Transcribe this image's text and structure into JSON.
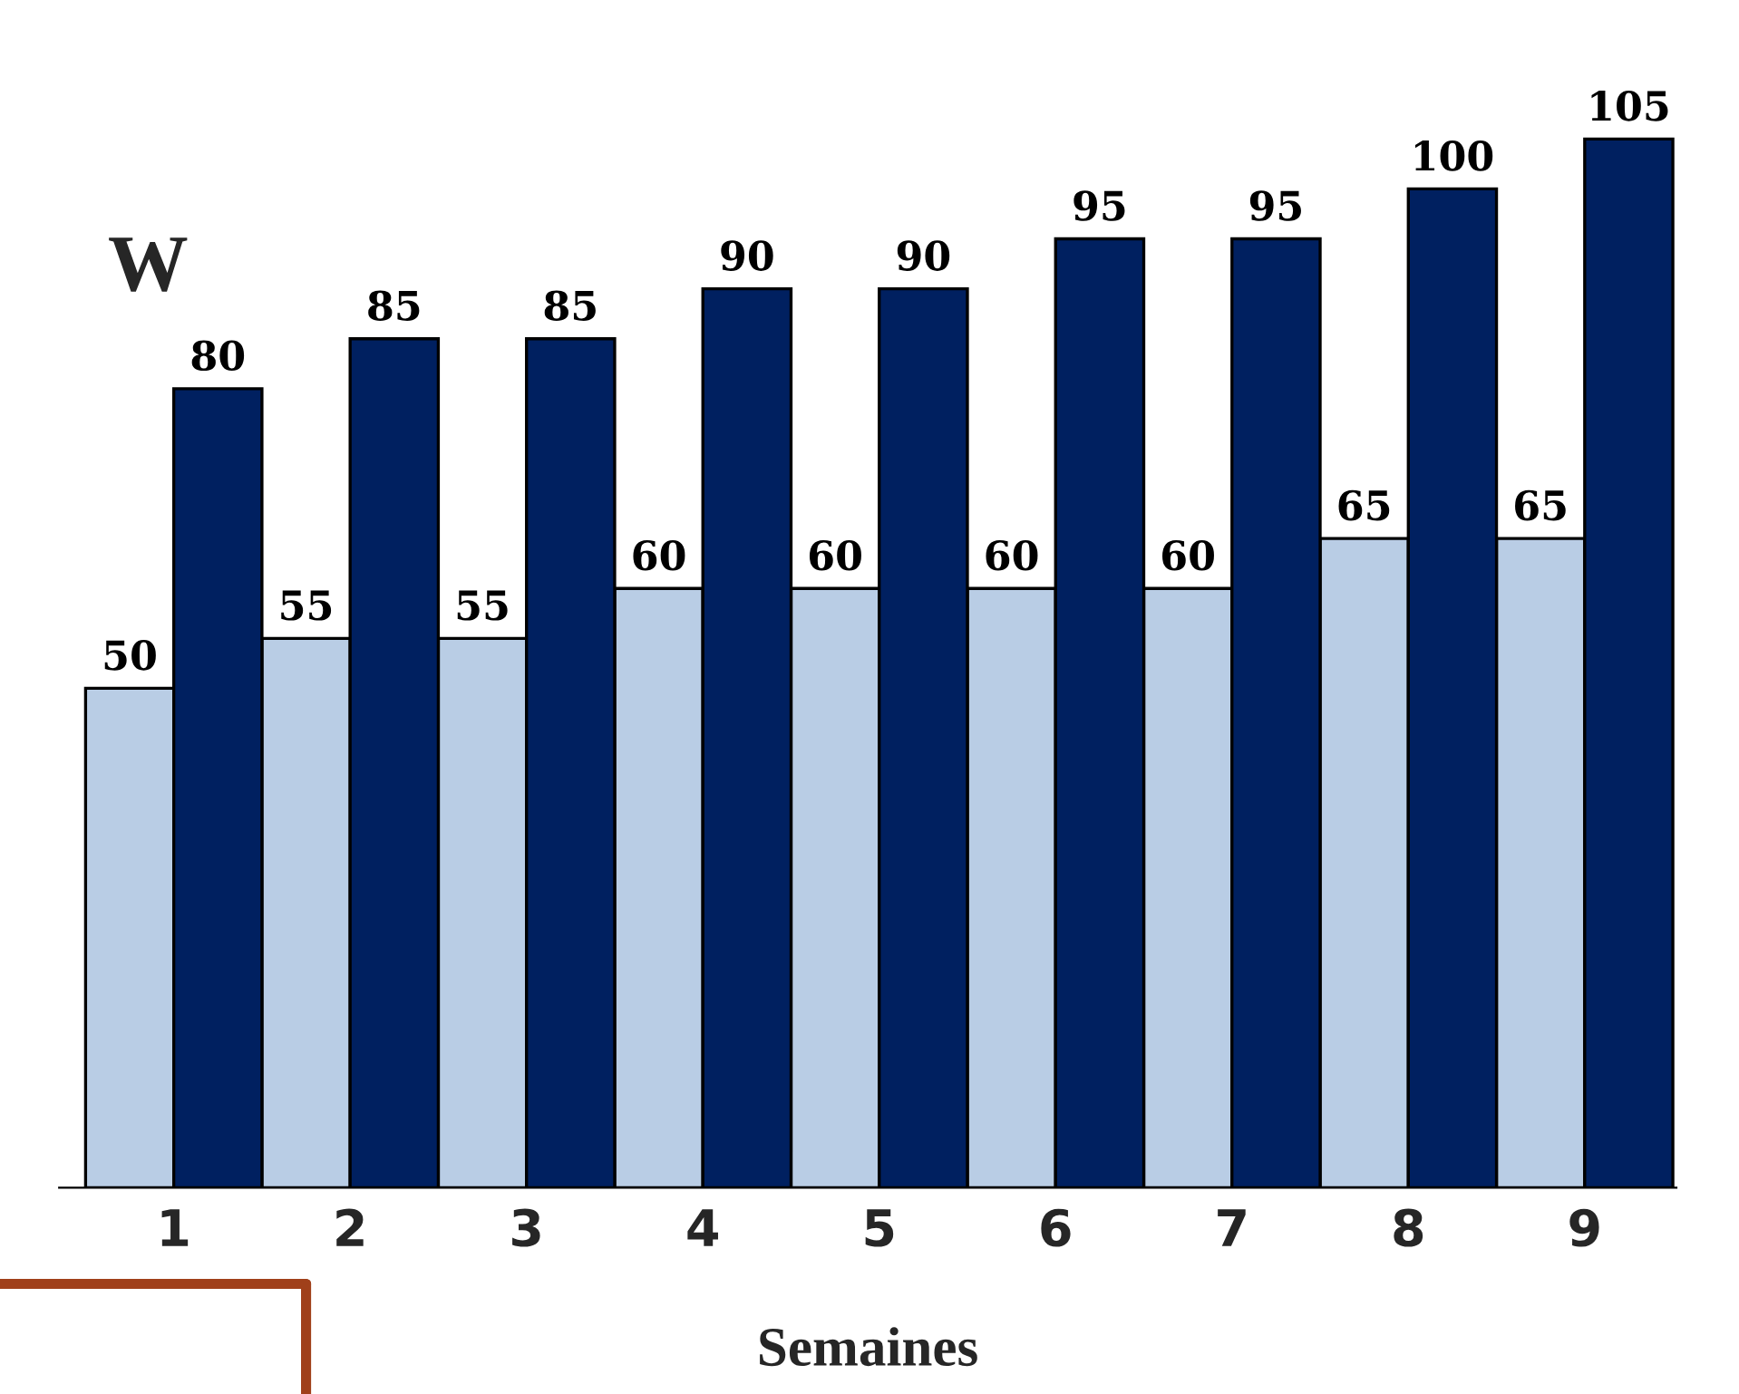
{
  "chart_data": {
    "type": "bar",
    "xlabel": "Semaines",
    "ylabel": "W",
    "categories": [
      "1",
      "2",
      "3",
      "4",
      "5",
      "6",
      "7",
      "8",
      "9"
    ],
    "series": [
      {
        "color": "#b9cde5",
        "values": [
          50,
          55,
          55,
          60,
          60,
          60,
          60,
          65,
          65
        ]
      },
      {
        "color": "#002060",
        "values": [
          80,
          85,
          85,
          90,
          90,
          95,
          95,
          100,
          105
        ]
      }
    ],
    "data_labels": true,
    "tick_labels": "x",
    "grid": false,
    "legend": false
  }
}
